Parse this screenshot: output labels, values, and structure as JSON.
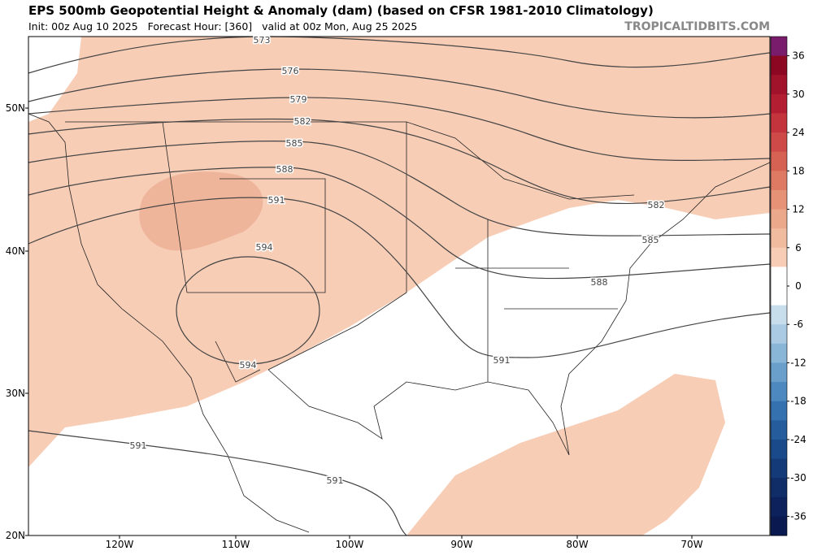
{
  "header": {
    "title": "EPS 500mb Geopotential Height & Anomaly (dam) (based on CFSR 1981-2010 Climatology)",
    "init": "Init: 00z Aug 10 2025   Forecast Hour: [360]   valid at 00z Mon, Aug 25 2025",
    "site": "TROPICALTIDBITS.COM"
  },
  "axes": {
    "lat_labels": [
      "50N",
      "40N",
      "30N",
      "20N"
    ],
    "lon_labels": [
      "120W",
      "110W",
      "100W",
      "90W",
      "80W",
      "70W"
    ]
  },
  "contour_labels": [
    "573",
    "576",
    "579",
    "582",
    "585",
    "588",
    "591",
    "594",
    "594",
    "591",
    "588",
    "585",
    "582",
    "591",
    "591"
  ],
  "colorbar": {
    "lim": [
      -39,
      39
    ],
    "ticks": [
      36,
      30,
      24,
      18,
      12,
      6,
      0,
      -6,
      -12,
      -18,
      -24,
      -30,
      -36
    ],
    "colors": [
      "#7a1c6c",
      "#8c0822",
      "#a0132b",
      "#b41e32",
      "#c3343c",
      "#cd4a48",
      "#d66254",
      "#de7a64",
      "#e59276",
      "#eba88a",
      "#f0bb9f",
      "#f7cdb6",
      "#ffffff",
      "#ffffff",
      "#c8ddec",
      "#a9cae2",
      "#89b5d7",
      "#6a9fcb",
      "#4d88be",
      "#3571ae",
      "#245c9c",
      "#1a4a8a",
      "#143a78",
      "#102d68",
      "#0d225c",
      "#0a1a50"
    ]
  }
}
